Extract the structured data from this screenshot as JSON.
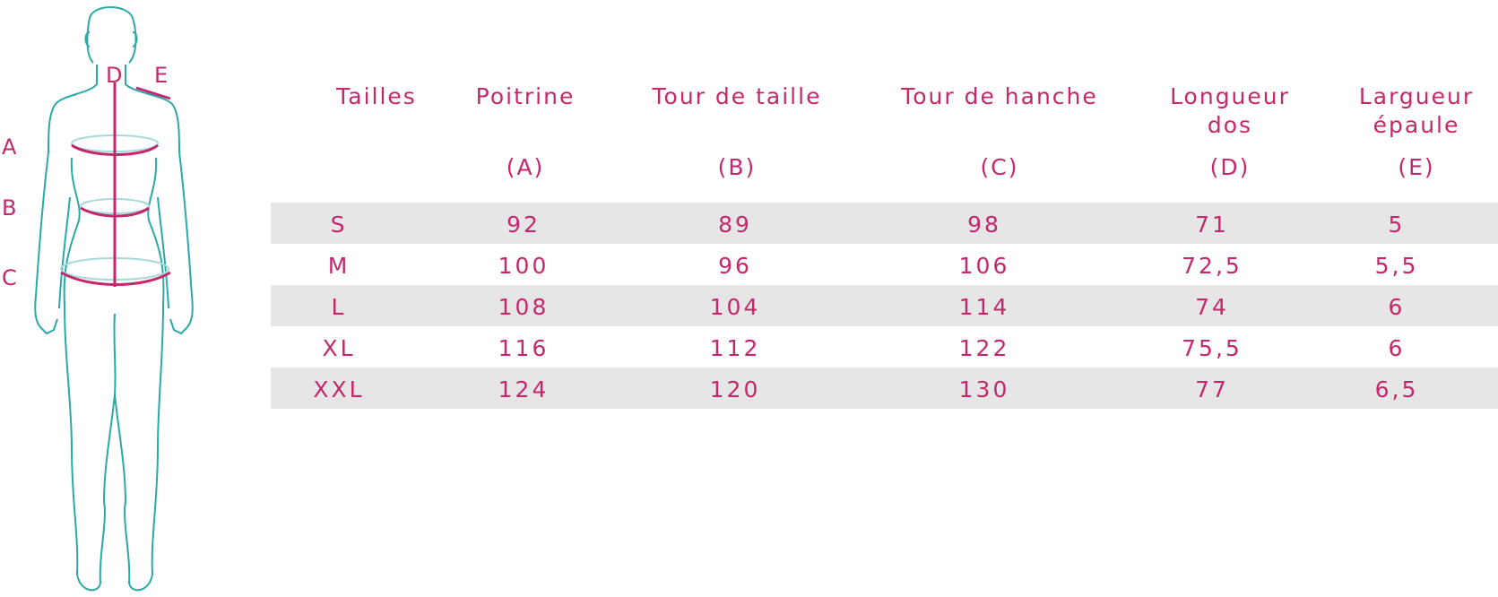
{
  "figure": {
    "labels": {
      "a": "A",
      "b": "B",
      "c": "C",
      "d": "D",
      "e": "E"
    },
    "colors": {
      "outline": "#2aa9a8",
      "measure": "#c4286c",
      "ellipse": "#a8d8d8"
    }
  },
  "table": {
    "headers": [
      {
        "title": "Tailles",
        "sub": ""
      },
      {
        "title": "Poitrine",
        "sub": "(A)"
      },
      {
        "title": "Tour de taille",
        "sub": "(B)"
      },
      {
        "title": "Tour de hanche",
        "sub": "(C)"
      },
      {
        "title": "Longueur dos",
        "sub": "(D)"
      },
      {
        "title": "Largueur épaule",
        "sub": "(E)"
      }
    ],
    "rows": [
      [
        "S",
        "92",
        "89",
        "98",
        "71",
        "5"
      ],
      [
        "M",
        "100",
        "96",
        "106",
        "72,5",
        "5,5"
      ],
      [
        "L",
        "108",
        "104",
        "114",
        "74",
        "6"
      ],
      [
        "XL",
        "116",
        "112",
        "122",
        "75,5",
        "6"
      ],
      [
        "XXL",
        "124",
        "120",
        "130",
        "77",
        "6,5"
      ]
    ],
    "colors": {
      "text": "#c4286c",
      "row_shade": "#e6e6e6"
    }
  }
}
